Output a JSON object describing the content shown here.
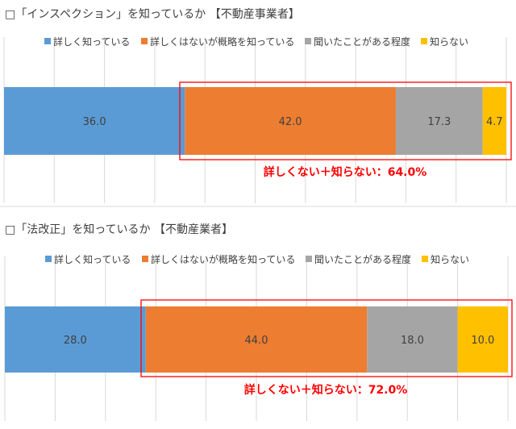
{
  "chart_data": [
    {
      "type": "bar",
      "orientation": "horizontal-stacked-100",
      "title": "□「インスペクション」を知っているか 【不動産事業者】",
      "legend": [
        "詳しく知っている",
        "詳しくはないが概略を知っている",
        "聞いたことがある程度",
        "知らない"
      ],
      "legend_position": "top",
      "series": [
        {
          "name": "詳しく知っている",
          "values": [
            36.0
          ],
          "label": "36.0",
          "color": "#5b9bd5"
        },
        {
          "name": "詳しくはないが概略を知っている",
          "values": [
            42.0
          ],
          "label": "42.0",
          "color": "#ed7d31"
        },
        {
          "name": "聞いたことがある程度",
          "values": [
            17.3
          ],
          "label": "17.3",
          "color": "#a5a5a5"
        },
        {
          "name": "知らない",
          "values": [
            4.7
          ],
          "label": "4.7",
          "color": "#ffc000"
        }
      ],
      "xlim": [
        0,
        100
      ],
      "grid": true,
      "annotation": "詳しくない＋知らない：64.0%"
    },
    {
      "type": "bar",
      "orientation": "horizontal-stacked-100",
      "title": "□「法改正」を知っているか 【不動産業者】",
      "legend": [
        "詳しく知っている",
        "詳しくはないが概略を知っている",
        "聞いたことがある程度",
        "知らない"
      ],
      "legend_position": "top",
      "series": [
        {
          "name": "詳しく知っている",
          "values": [
            28.0
          ],
          "label": "28.0",
          "color": "#5b9bd5"
        },
        {
          "name": "詳しくはないが概略を知っている",
          "values": [
            44.0
          ],
          "label": "44.0",
          "color": "#ed7d31"
        },
        {
          "name": "聞いたことがある程度",
          "values": [
            18.0
          ],
          "label": "18.0",
          "color": "#a5a5a5"
        },
        {
          "name": "知らない",
          "values": [
            10.0
          ],
          "label": "10.0",
          "color": "#ffc000"
        }
      ],
      "xlim": [
        0,
        100
      ],
      "grid": true,
      "annotation": "詳しくない＋知らない：72.0%"
    }
  ]
}
